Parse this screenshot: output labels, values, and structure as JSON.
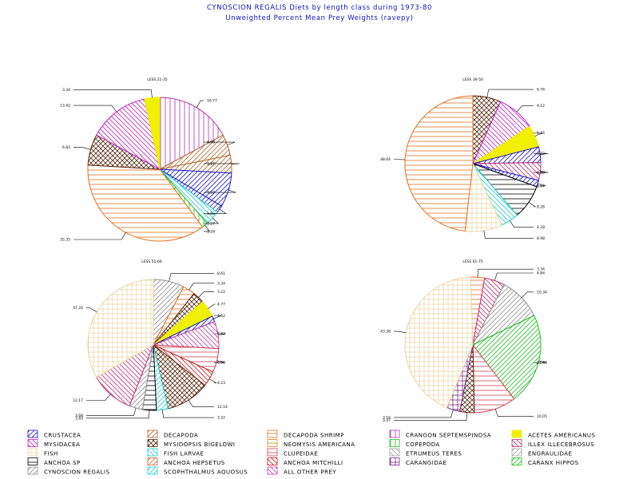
{
  "header": {
    "title": "CYNOSCION REGALIS Diets by length class during 1973-80",
    "subtitle": "Unweighted Percent Mean Prey Weights (ravepy)"
  },
  "prey_types": [
    {
      "key": "crustacea",
      "label": "CRUSTACEA",
      "color": "#1a1ad0",
      "pattern": "diagUp"
    },
    {
      "key": "decapoda",
      "label": "DECAPODA",
      "color": "#b06a30",
      "pattern": "diagUp"
    },
    {
      "key": "decapoda_shrimp",
      "label": "DECAPODA SHRIMP",
      "color": "#e07020",
      "pattern": "horiz"
    },
    {
      "key": "crangon",
      "label": "CRANGON SEPTEMSPINOSA",
      "color": "#b030b0",
      "pattern": "vert"
    },
    {
      "key": "acetes",
      "label": "ACETES AMERICANUS",
      "color": "#f0f000",
      "pattern": "solid"
    },
    {
      "key": "mysidacea",
      "label": "MYSIDACEA",
      "color": "#c020c0",
      "pattern": "diagDown"
    },
    {
      "key": "mysidopsis",
      "label": "MYSIDOPSIS BIGELOWI",
      "color": "#5a2a10",
      "pattern": "cross"
    },
    {
      "key": "neomysis",
      "label": "NEOMYSIS AMERICANA",
      "color": "#e08020",
      "pattern": "horiz"
    },
    {
      "key": "copepoda",
      "label": "COPEPODA",
      "color": "#20c020",
      "pattern": "vert"
    },
    {
      "key": "illex",
      "label": "ILLEX ILLECEBROSUS",
      "color": "#c03070",
      "pattern": "diagDown"
    },
    {
      "key": "fish",
      "label": "FISH",
      "color": "#e8d8a8",
      "pattern": "grid"
    },
    {
      "key": "fish_larvae",
      "label": "FISH LARVAE",
      "color": "#20d0d0",
      "pattern": "diagDown"
    },
    {
      "key": "clupeidae",
      "label": "CLUPEIDAE",
      "color": "#d04050",
      "pattern": "horiz"
    },
    {
      "key": "etrumeus",
      "label": "ETRUMEUS TERES",
      "color": "#a0a0a0",
      "pattern": "diagDown"
    },
    {
      "key": "engraulidae",
      "label": "ENGRAULIDAE",
      "color": "#a0a0a0",
      "pattern": "diagUp"
    },
    {
      "key": "anchoa_sp",
      "label": "ANCHOA SP",
      "color": "#000000",
      "pattern": "horiz"
    },
    {
      "key": "anchoa_hep",
      "label": "ANCHOA HEPSETUS",
      "color": "#e06030",
      "pattern": "diagUp"
    },
    {
      "key": "anchoa_mit",
      "label": "ANCHOA MITCHILLI",
      "color": "#c02020",
      "pattern": "diagDown"
    },
    {
      "key": "carangidae",
      "label": "CARANGIDAE",
      "color": "#7a2a8a",
      "pattern": "grid"
    },
    {
      "key": "caranx",
      "label": "CARANX HIPPOS",
      "color": "#20c020",
      "pattern": "diagUp"
    },
    {
      "key": "cynoscion",
      "label": "CYNOSCION REGALIS",
      "color": "#909090",
      "pattern": "diagUp"
    },
    {
      "key": "scophthalmus",
      "label": "SCOPHTHALMUS AQUOSUS",
      "color": "#20d0d0",
      "pattern": "diagUp"
    },
    {
      "key": "all_other",
      "label": "ALL OTHER PREY",
      "color": "#c040a0",
      "pattern": "diagDown"
    }
  ],
  "chart_data": [
    {
      "type": "pie",
      "title": "LESS 21-35",
      "slices": [
        {
          "prey": "crangon",
          "value": 16.77,
          "label": "16.77"
        },
        {
          "prey": "decapoda",
          "value": 4.68,
          "label": "4.68"
        },
        {
          "prey": "decapoda",
          "value": 3.87,
          "label": "3.87"
        },
        {
          "prey": "crustacea",
          "value": 7.57,
          "label": "7.57"
        },
        {
          "prey": "crustacea",
          "value": 1.62,
          "label": "1.62"
        },
        {
          "prey": "fish_larvae",
          "value": 3.27,
          "label": "3.27"
        },
        {
          "prey": "copepoda",
          "value": 1.28,
          "label": "1.28"
        },
        {
          "prey": "decapoda_shrimp",
          "value": 35.35,
          "label": "35.35"
        },
        {
          "prey": "mysidopsis",
          "value": 6.83,
          "label": "6.83"
        },
        {
          "prey": "mysidacea",
          "value": 13.42,
          "label": "13.42"
        },
        {
          "prey": "acetes",
          "value": 3.34,
          "label": "3.34"
        }
      ]
    },
    {
      "type": "pie",
      "title": "LESS 36-50",
      "slices": [
        {
          "prey": "mysidopsis",
          "value": 6.76,
          "label": "6.76"
        },
        {
          "prey": "mysidacea",
          "value": 9.12,
          "label": "9.12"
        },
        {
          "prey": "acetes",
          "value": 5.34,
          "label": "5.34"
        },
        {
          "prey": "crustacea",
          "value": 3.77,
          "label": "3.77"
        },
        {
          "prey": "illex",
          "value": 4.28,
          "label": "4.28"
        },
        {
          "prey": "crustacea",
          "value": 1.57,
          "label": "1.57"
        },
        {
          "prey": "anchoa_sp",
          "value": 8.28,
          "label": "8.28"
        },
        {
          "prey": "fish_larvae",
          "value": 4.28,
          "label": "4.28"
        },
        {
          "prey": "fish",
          "value": 8.98,
          "label": "8.98"
        },
        {
          "prey": "decapoda_shrimp",
          "value": 48.64,
          "label": "48.64"
        }
      ]
    },
    {
      "type": "pie",
      "title": "LESS 51-66",
      "slices": [
        {
          "prey": "cynoscion",
          "value": 8.61,
          "label": "8.61"
        },
        {
          "prey": "decapoda_shrimp",
          "value": 3.34,
          "label": "3.34"
        },
        {
          "prey": "mysidopsis",
          "value": 3.22,
          "label": "3.22"
        },
        {
          "prey": "acetes",
          "value": 4.77,
          "label": "4.77"
        },
        {
          "prey": "crustacea",
          "value": 1.62,
          "label": "1.62"
        },
        {
          "prey": "all_other",
          "value": 7.52,
          "label": "7.52"
        },
        {
          "prey": "clupeidae",
          "value": 6.58,
          "label": "6.58"
        },
        {
          "prey": "anchoa_mit",
          "value": 4.23,
          "label": "4.23"
        },
        {
          "prey": "mysidopsis",
          "value": 12.14,
          "label": "12.14"
        },
        {
          "prey": "scophthalmus",
          "value": 3.22,
          "label": "3.22"
        },
        {
          "prey": "anchoa_sp",
          "value": 3.83,
          "label": "3.83"
        },
        {
          "prey": "cynoscion",
          "value": 3.68,
          "label": "3.68"
        },
        {
          "prey": "illex",
          "value": 12.17,
          "label": "12.17"
        },
        {
          "prey": "fish",
          "value": 37.24,
          "label": "37.24"
        }
      ]
    },
    {
      "type": "pie",
      "title": "LESS 61-75",
      "slices": [
        {
          "prey": "decapoda_shrimp",
          "value": 3.34,
          "label": "3.34"
        },
        {
          "prey": "illex",
          "value": 4.84,
          "label": "4.84"
        },
        {
          "prey": "cynoscion",
          "value": 10.34,
          "label": "10.34"
        },
        {
          "prey": "caranx",
          "value": 21.83,
          "label": "21.83"
        },
        {
          "prey": "clupeidae",
          "value": 10.05,
          "label": "10.05"
        },
        {
          "prey": "mysidopsis",
          "value": 3.47,
          "label": "3.47"
        },
        {
          "prey": "carangidae",
          "value": 3.16,
          "label": "3.16"
        },
        {
          "prey": "fish",
          "value": 43.38,
          "label": "43.38"
        }
      ]
    }
  ]
}
